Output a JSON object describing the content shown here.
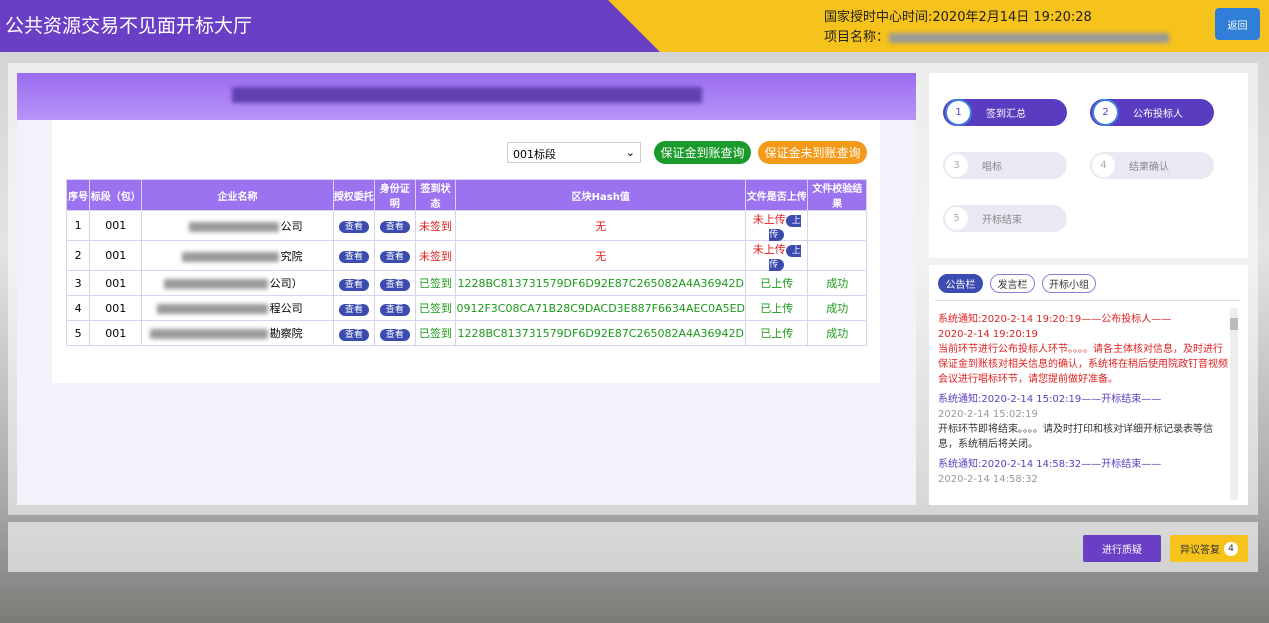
{
  "header": {
    "title": "公共资源交易不见面开标大厅",
    "time": "国家授时中心时间:2020年2月14日 19:20:28",
    "project_label": "项目名称：",
    "back": "返回"
  },
  "toolbar": {
    "select": "001标段",
    "paid_query": "保证金到账查询",
    "unpaid_query": "保证金未到账查询"
  },
  "table": {
    "headers": [
      "序号",
      "标段（包）",
      "企业名称",
      "授权委托",
      "身份证明",
      "签到状态",
      "区块Hash值",
      "文件是否上传",
      "文件校验结果"
    ],
    "rows": [
      {
        "no": "1",
        "section": "001",
        "company": "公司",
        "auth": "查看",
        "id": "查看",
        "status": "未签到",
        "color": "#e02020",
        "hash": "无",
        "upload": "未上传",
        "upload_btn": "上传"
      },
      {
        "no": "2",
        "section": "001",
        "company": "究院",
        "auth": "查看",
        "id": "查看",
        "status": "未签到",
        "color": "#e02020",
        "hash": "无",
        "upload": "未上传",
        "upload_btn": "上传"
      },
      {
        "no": "3",
        "section": "001",
        "company": "公司）",
        "auth": "查看",
        "id": "查看",
        "status": "已签到",
        "color": "#1a9a1a",
        "hash": "1228BC813731579DF6D92E87C265082A4A36942D",
        "upload": "已上传",
        "verify": "成功"
      },
      {
        "no": "4",
        "section": "001",
        "company": "程公司",
        "auth": "查看",
        "id": "查看",
        "status": "已签到",
        "color": "#1a9a1a",
        "hash": "0912F3C08CA71B28C9DACD3E887F6634AEC0A5ED",
        "upload": "已上传",
        "verify": "成功"
      },
      {
        "no": "5",
        "section": "001",
        "company": "勘察院",
        "auth": "查看",
        "id": "查看",
        "status": "已签到",
        "color": "#1a9a1a",
        "hash": "1228BC813731579DF6D92E87C265082A4A36942D",
        "upload": "已上传",
        "verify": "成功"
      }
    ]
  },
  "steps": [
    {
      "num": "1",
      "label": "签到汇总",
      "active": true
    },
    {
      "num": "2",
      "label": "公布投标人",
      "active": true
    },
    {
      "num": "3",
      "label": "唱标",
      "active": false
    },
    {
      "num": "4",
      "label": "结果确认",
      "active": false
    },
    {
      "num": "5",
      "label": "开标结束",
      "active": false
    }
  ],
  "tabs": [
    "公告栏",
    "发言栏",
    "开标小组"
  ],
  "notices": [
    {
      "title": "系统通知:2020-2-14 19:20:19——公布投标人——",
      "time": "2020-2-14 19:20:19",
      "body": "当前环节进行公布投标人环节。。。。请各主体核对信息，及时进行保证金到账核对相关信息的确认，系统将在稍后使用院政钉音视频会议进行唱标环节，请您提前做好准备。",
      "color": "#e02020"
    },
    {
      "title": "系统通知:2020-2-14 15:02:19——开标结束——",
      "time": "2020-2-14 15:02:19",
      "body": "开标环节即将结束。。。。请及时打印和核对详细开标记录表等信息，系统稍后将关闭。",
      "color": "#333333"
    },
    {
      "title": "系统通知:2020-2-14 14:58:32——开标结束——",
      "time": "2020-2-14 14:58:32",
      "color": "#333333"
    }
  ],
  "footer": {
    "question": "进行质疑",
    "reply": "异议答复",
    "badge": "4"
  }
}
